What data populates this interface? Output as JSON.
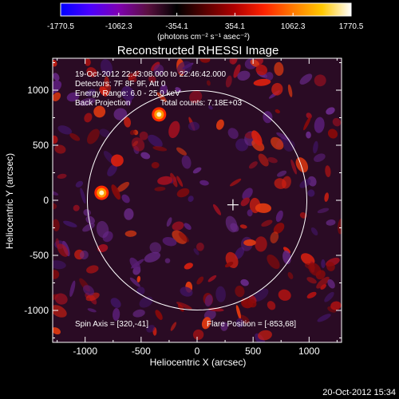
{
  "colorbar": {
    "tick_labels": [
      "-1770.5",
      "-1062.3",
      "-354.1",
      "354.1",
      "1062.3",
      "1770.5"
    ],
    "unit_label": "(photons cm⁻² s⁻¹ asec⁻²)",
    "range": [
      -1770.5,
      1770.5
    ],
    "colors": [
      "#0000ff",
      "#4b00ff",
      "#7f00b0",
      "#5a1040",
      "#000000",
      "#5a0000",
      "#b00000",
      "#ff2200",
      "#ff7a00",
      "#ffc800",
      "#ffffff"
    ]
  },
  "title": "Reconstructed RHESSI Image",
  "info": {
    "line1": "19-Oct-2012 22:43:08.000 to 22:46:42.000",
    "line2": "Detectors: 7F 8F 9F, Att 0",
    "line3": "Energy Range: 6.0 - 25.0 keV",
    "line4a": "Back Projection",
    "line4b": "Total counts: 7.18E+03"
  },
  "footer": {
    "spin_axis": "Spin Axis = [320,-41]",
    "flare_position": "Flare Position = [-853,68]"
  },
  "axes": {
    "xlabel": "Heliocentric X (arcsec)",
    "ylabel": "Heliocentric Y (arcsec)",
    "xlim": [
      -1290,
      1290
    ],
    "ylim": [
      -1290,
      1290
    ],
    "x_ticks": [
      -1000,
      -500,
      0,
      500,
      1000
    ],
    "y_ticks": [
      -1000,
      -500,
      0,
      500,
      1000
    ],
    "x_tick_labels": [
      "-1000",
      "-500",
      "0",
      "500",
      "1000"
    ],
    "y_tick_labels": [
      "-1000",
      "-500",
      "0",
      "500",
      "1000"
    ]
  },
  "solar_limb": {
    "center": [
      0,
      0
    ],
    "radius": 980
  },
  "cross_marker": [
    320,
    -41
  ],
  "sources": [
    {
      "x": -853,
      "y": 68,
      "label": ""
    },
    {
      "x": -340,
      "y": 780,
      "label": ""
    }
  ],
  "timestamp": "20-Oct-2012 15:34"
}
